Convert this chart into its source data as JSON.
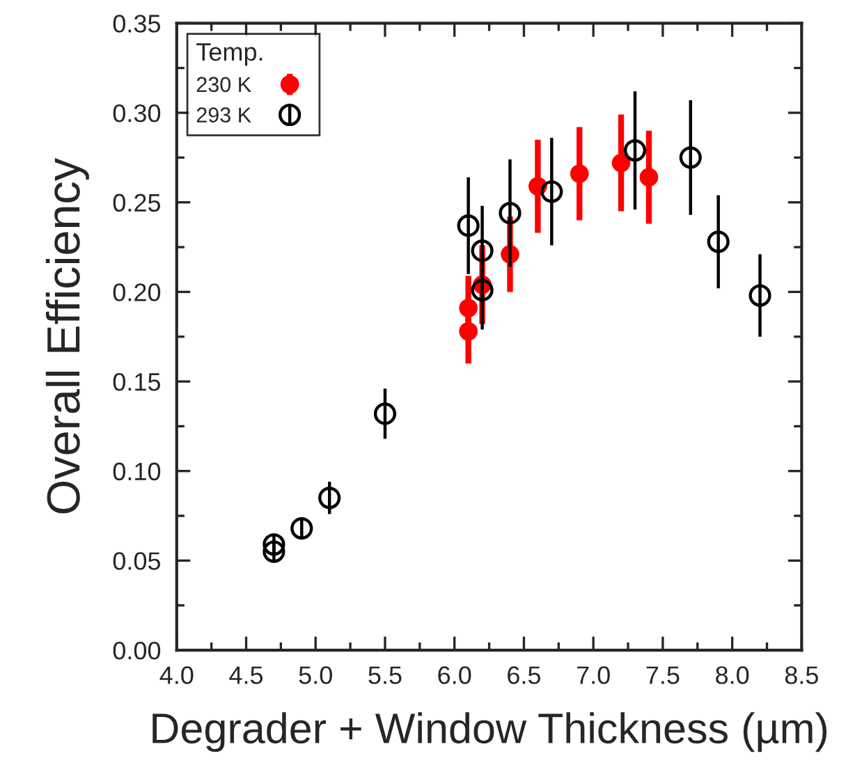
{
  "chart_data": {
    "type": "scatter",
    "xlabel": "Degrader + Window Thickness (µm)",
    "ylabel": "Overall Efficiency",
    "legend_title": "Temp.",
    "legend": "top left",
    "grid": false,
    "xlim": [
      4.0,
      8.5
    ],
    "ylim": [
      0.0,
      0.35
    ],
    "xticks": [
      {
        "value": 4.0,
        "label": "4.0"
      },
      {
        "value": 4.5,
        "label": "4.5"
      },
      {
        "value": 5.0,
        "label": "5.0"
      },
      {
        "value": 5.5,
        "label": "5.5"
      },
      {
        "value": 6.0,
        "label": "6.0"
      },
      {
        "value": 6.5,
        "label": "6.5"
      },
      {
        "value": 7.0,
        "label": "7.0"
      },
      {
        "value": 7.5,
        "label": "7.5"
      },
      {
        "value": 8.0,
        "label": "8.0"
      },
      {
        "value": 8.5,
        "label": "8.5"
      }
    ],
    "yticks": [
      {
        "value": 0.0,
        "label": "0.00"
      },
      {
        "value": 0.05,
        "label": "0.05"
      },
      {
        "value": 0.1,
        "label": "0.10"
      },
      {
        "value": 0.15,
        "label": "0.15"
      },
      {
        "value": 0.2,
        "label": "0.20"
      },
      {
        "value": 0.25,
        "label": "0.25"
      },
      {
        "value": 0.3,
        "label": "0.30"
      },
      {
        "value": 0.35,
        "label": "0.35"
      }
    ],
    "series": [
      {
        "name": "230 K",
        "color": "#ff0000",
        "marker": "circle",
        "x": [
          6.1,
          6.1,
          6.2,
          6.4,
          6.6,
          6.9,
          7.2,
          7.4
        ],
        "values": [
          0.191,
          0.178,
          0.204,
          0.221,
          0.259,
          0.266,
          0.272,
          0.264
        ],
        "errors": [
          0.018,
          0.018,
          0.022,
          0.021,
          0.026,
          0.026,
          0.027,
          0.026
        ]
      },
      {
        "name": "293 K",
        "color": "#000000",
        "marker": "circle",
        "x": [
          4.7,
          4.7,
          4.9,
          5.1,
          5.5,
          6.1,
          6.2,
          6.2,
          6.4,
          6.7,
          7.3,
          7.7,
          7.9,
          8.2
        ],
        "values": [
          0.059,
          0.055,
          0.068,
          0.085,
          0.132,
          0.237,
          0.223,
          0.201,
          0.244,
          0.256,
          0.279,
          0.275,
          0.228,
          0.198
        ],
        "errors": [
          0.005,
          0.005,
          0.006,
          0.009,
          0.014,
          0.027,
          0.025,
          0.022,
          0.03,
          0.03,
          0.033,
          0.032,
          0.026,
          0.023
        ]
      }
    ]
  }
}
